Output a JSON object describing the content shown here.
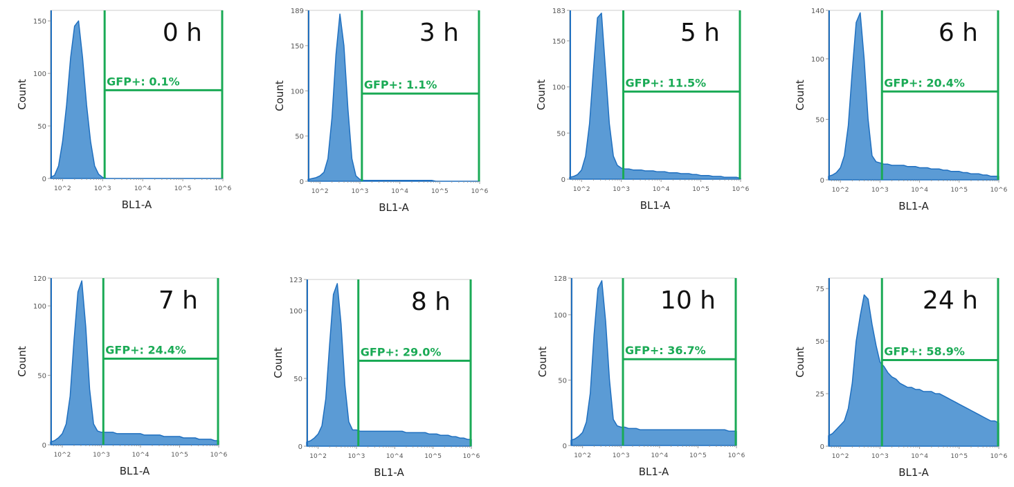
{
  "chart_data": [
    {
      "type": "area",
      "title": "0 h",
      "gate_label": "GFP+: 0.1%",
      "xlabel": "BL1-A",
      "ylabel": "Count",
      "x_scale": "log",
      "xlim_log10": [
        1.7,
        6.0
      ],
      "x_ticks": [
        "10^2",
        "10^3",
        "10^4",
        "10^5",
        "10^6"
      ],
      "ylim": [
        0,
        160
      ],
      "y_ticks": [
        0,
        50,
        100,
        150
      ],
      "gate_log10": [
        3.05,
        6.0
      ],
      "gate_y": 84,
      "values": [
        1,
        3,
        12,
        35,
        70,
        115,
        145,
        150,
        115,
        70,
        35,
        12,
        4,
        1,
        0,
        0,
        0,
        0,
        0,
        0,
        0,
        0,
        0,
        0,
        0,
        0,
        0,
        0,
        0,
        0,
        0,
        0,
        0,
        0,
        0,
        0,
        0,
        0,
        0,
        0,
        0,
        0,
        0,
        0
      ]
    },
    {
      "type": "area",
      "title": "3 h",
      "gate_label": "GFP+: 1.1%",
      "xlabel": "BL1-A",
      "ylabel": "Count",
      "x_scale": "log",
      "xlim_log10": [
        1.7,
        6.0
      ],
      "x_ticks": [
        "10^2",
        "10^3",
        "10^4",
        "10^5",
        "10^6"
      ],
      "ylim": [
        0,
        189
      ],
      "y_ticks": [
        0,
        50,
        100,
        150,
        189
      ],
      "gate_log10": [
        3.05,
        6.0
      ],
      "gate_y": 97,
      "values": [
        2,
        3,
        4,
        6,
        10,
        25,
        70,
        140,
        185,
        150,
        80,
        25,
        6,
        2,
        1,
        1,
        1,
        1,
        1,
        1,
        1,
        1,
        1,
        1,
        1,
        1,
        1,
        1,
        1,
        1,
        1,
        1,
        0,
        0,
        0,
        0,
        0,
        0,
        0,
        0,
        0,
        0,
        0,
        0
      ]
    },
    {
      "type": "area",
      "title": "5 h",
      "gate_label": "GFP+: 11.5%",
      "xlabel": "BL1-A",
      "ylabel": "Count",
      "x_scale": "log",
      "xlim_log10": [
        1.7,
        6.0
      ],
      "x_ticks": [
        "10^2",
        "10^3",
        "10^4",
        "10^5",
        "10^6"
      ],
      "ylim": [
        0,
        183
      ],
      "y_ticks": [
        0,
        50,
        100,
        150,
        183
      ],
      "gate_log10": [
        3.05,
        6.0
      ],
      "gate_y": 95,
      "values": [
        2,
        3,
        5,
        10,
        25,
        60,
        120,
        175,
        180,
        120,
        60,
        25,
        15,
        12,
        11,
        11,
        10,
        10,
        10,
        9,
        9,
        9,
        8,
        8,
        8,
        7,
        7,
        7,
        6,
        6,
        6,
        5,
        5,
        4,
        4,
        4,
        3,
        3,
        3,
        2,
        2,
        2,
        2,
        1
      ]
    },
    {
      "type": "area",
      "title": "6 h",
      "gate_label": "GFP+: 20.4%",
      "xlabel": "BL1-A",
      "ylabel": "Count",
      "x_scale": "log",
      "xlim_log10": [
        1.7,
        6.0
      ],
      "x_ticks": [
        "10^2",
        "10^3",
        "10^4",
        "10^5",
        "10^6"
      ],
      "ylim": [
        0,
        140
      ],
      "y_ticks": [
        0,
        50,
        100,
        140
      ],
      "gate_log10": [
        3.05,
        6.0
      ],
      "gate_y": 73,
      "values": [
        3,
        4,
        6,
        10,
        20,
        45,
        90,
        130,
        138,
        100,
        50,
        20,
        15,
        14,
        13,
        13,
        12,
        12,
        12,
        12,
        11,
        11,
        11,
        10,
        10,
        10,
        9,
        9,
        9,
        8,
        8,
        7,
        7,
        7,
        6,
        6,
        5,
        5,
        5,
        4,
        4,
        3,
        3,
        3
      ]
    },
    {
      "type": "area",
      "title": "7 h",
      "gate_label": "GFP+: 24.4%",
      "xlabel": "BL1-A",
      "ylabel": "Count",
      "x_scale": "log",
      "xlim_log10": [
        1.7,
        6.0
      ],
      "x_ticks": [
        "10^2",
        "10^3",
        "10^4",
        "10^5",
        "10^6"
      ],
      "ylim": [
        0,
        120
      ],
      "y_ticks": [
        0,
        50,
        100,
        120
      ],
      "gate_log10": [
        3.05,
        6.0
      ],
      "gate_y": 62,
      "values": [
        2,
        3,
        5,
        8,
        15,
        35,
        75,
        110,
        118,
        85,
        40,
        15,
        10,
        9,
        9,
        9,
        9,
        8,
        8,
        8,
        8,
        8,
        8,
        8,
        7,
        7,
        7,
        7,
        7,
        6,
        6,
        6,
        6,
        6,
        5,
        5,
        5,
        5,
        4,
        4,
        4,
        4,
        3,
        3
      ]
    },
    {
      "type": "area",
      "title": "8 h",
      "gate_label": "GFP+: 29.0%",
      "xlabel": "BL1-A",
      "ylabel": "Count",
      "x_scale": "log",
      "xlim_log10": [
        1.7,
        6.0
      ],
      "x_ticks": [
        "10^2",
        "10^3",
        "10^4",
        "10^5",
        "10^6"
      ],
      "ylim": [
        0,
        123
      ],
      "y_ticks": [
        0,
        50,
        100,
        123
      ],
      "gate_log10": [
        3.05,
        6.0
      ],
      "gate_y": 63,
      "values": [
        3,
        4,
        6,
        9,
        15,
        35,
        75,
        112,
        120,
        90,
        45,
        18,
        12,
        12,
        11,
        11,
        11,
        11,
        11,
        11,
        11,
        11,
        11,
        11,
        11,
        11,
        10,
        10,
        10,
        10,
        10,
        10,
        9,
        9,
        9,
        8,
        8,
        8,
        7,
        7,
        6,
        6,
        5,
        5
      ]
    },
    {
      "type": "area",
      "title": "10 h",
      "gate_label": "GFP+: 36.7%",
      "xlabel": "BL1-A",
      "ylabel": "Count",
      "x_scale": "log",
      "xlim_log10": [
        1.7,
        6.0
      ],
      "x_ticks": [
        "10^2",
        "10^3",
        "10^4",
        "10^5",
        "10^6"
      ],
      "ylim": [
        0,
        128
      ],
      "y_ticks": [
        0,
        50,
        100,
        128
      ],
      "gate_log10": [
        3.05,
        6.0
      ],
      "gate_y": 66,
      "values": [
        4,
        5,
        7,
        10,
        18,
        40,
        85,
        120,
        126,
        95,
        50,
        20,
        15,
        14,
        14,
        13,
        13,
        13,
        12,
        12,
        12,
        12,
        12,
        12,
        12,
        12,
        12,
        12,
        12,
        12,
        12,
        12,
        12,
        12,
        12,
        12,
        12,
        12,
        12,
        12,
        12,
        11,
        11,
        11
      ]
    },
    {
      "type": "area",
      "title": "24 h",
      "gate_label": "GFP+: 58.9%",
      "xlabel": "BL1-A",
      "ylabel": "Count",
      "x_scale": "log",
      "xlim_log10": [
        1.7,
        6.0
      ],
      "x_ticks": [
        "10^2",
        "10^3",
        "10^4",
        "10^5",
        "10^6"
      ],
      "ylim": [
        0,
        80
      ],
      "y_ticks": [
        0,
        25,
        50,
        75
      ],
      "gate_log10": [
        3.05,
        6.0
      ],
      "gate_y": 41,
      "values": [
        5,
        6,
        8,
        10,
        12,
        18,
        30,
        50,
        62,
        72,
        70,
        58,
        48,
        40,
        38,
        35,
        33,
        32,
        30,
        29,
        28,
        28,
        27,
        27,
        26,
        26,
        26,
        25,
        25,
        24,
        23,
        22,
        21,
        20,
        19,
        18,
        17,
        16,
        15,
        14,
        13,
        12,
        12,
        11
      ]
    }
  ],
  "colors": {
    "fill": "#5b9bd5",
    "line": "#1f6fbf",
    "gate": "#1aaa55",
    "axis": "#999999"
  }
}
